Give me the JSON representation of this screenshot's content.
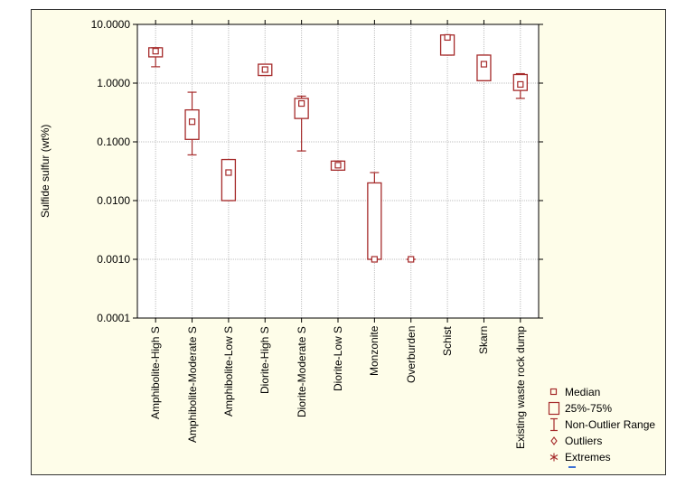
{
  "chart_data": {
    "type": "box",
    "title": "",
    "xlabel": "",
    "ylabel": "Sulfide sulfur (wt%)",
    "yscale": "log",
    "ylim": [
      0.0001,
      10
    ],
    "yticks": [
      "10.0000",
      "1.0000",
      "0.1000",
      "0.0100",
      "0.0010",
      "0.0001"
    ],
    "grid": true,
    "categories": [
      "Amphibolite-High S",
      "Amphibolite-Moderate S",
      "Amphibolite-Low S",
      "Diorite-High S",
      "Diorite-Moderate S",
      "Diorite-Low S",
      "Monzonite",
      "Overburden",
      "Schist",
      "Skarn",
      "Existing waste rock dump"
    ],
    "boxes": [
      {
        "median": 3.5,
        "q1": 2.8,
        "q3": 4.0,
        "min": 1.9,
        "max": 4.0
      },
      {
        "median": 0.22,
        "q1": 0.11,
        "q3": 0.35,
        "min": 0.06,
        "max": 0.7
      },
      {
        "median": 0.03,
        "q1": 0.01,
        "q3": 0.05,
        "min": 0.01,
        "max": 0.05
      },
      {
        "median": 1.7,
        "q1": 1.35,
        "q3": 2.1,
        "min": 1.35,
        "max": 2.1
      },
      {
        "median": 0.45,
        "q1": 0.25,
        "q3": 0.55,
        "min": 0.07,
        "max": 0.6
      },
      {
        "median": 0.04,
        "q1": 0.033,
        "q3": 0.047,
        "min": 0.033,
        "max": 0.047
      },
      {
        "median": 0.001,
        "q1": 0.001,
        "q3": 0.02,
        "min": 0.001,
        "max": 0.03
      },
      {
        "median": 0.001,
        "q1": 0.001,
        "q3": 0.001,
        "min": 0.001,
        "max": 0.001
      },
      {
        "median": 6.0,
        "q1": 3.0,
        "q3": 6.6,
        "min": 3.0,
        "max": 6.6
      },
      {
        "median": 2.1,
        "q1": 1.1,
        "q3": 3.0,
        "min": 1.1,
        "max": 3.0
      },
      {
        "median": 0.95,
        "q1": 0.75,
        "q3": 1.4,
        "min": 0.55,
        "max": 1.45
      }
    ],
    "legend": {
      "position": "bottom-right",
      "items": [
        "Median",
        "25%-75%",
        "Non-Outlier Range",
        "Outliers",
        "Extremes"
      ]
    },
    "colors": {
      "series": "#a52a2a",
      "background": "#fefde9",
      "grid": "#bfbfbf",
      "axis": "#000000"
    }
  }
}
